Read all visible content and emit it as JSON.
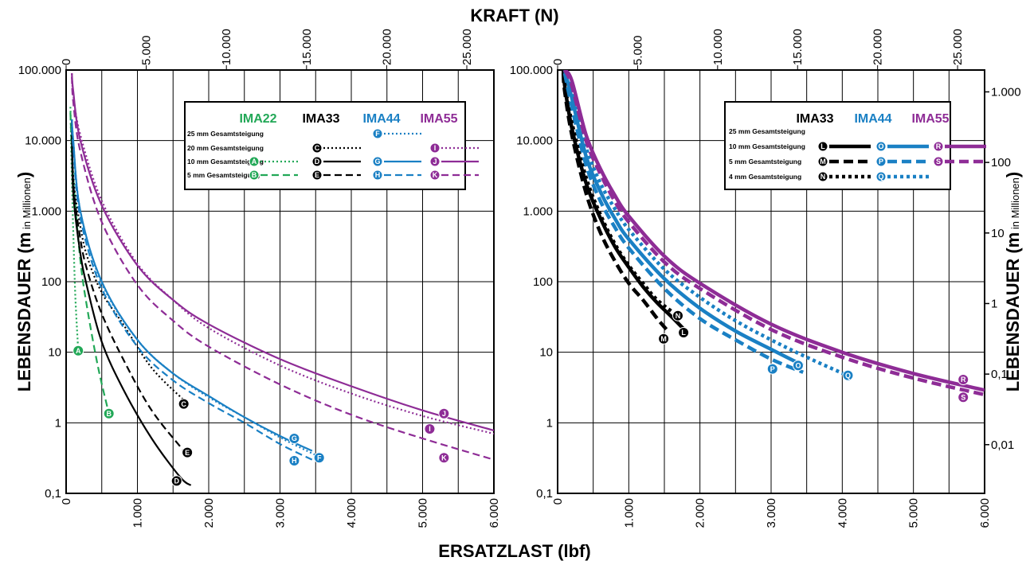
{
  "top_title": "KRAFT (N)",
  "bottom_title": "ERSATZLAST (lbf)",
  "colors": {
    "IMA22": "#22a857",
    "IMA33": "#000000",
    "IMA44": "#1a80c4",
    "IMA55": "#8e2c96"
  },
  "chart_data": [
    {
      "type": "line",
      "id": "left",
      "ylabel_main": "LEBENSDAUER (m",
      "ylabel_sub": " in Millionen",
      "ylabel_close": ")",
      "xlim": [
        0,
        6000
      ],
      "x2lim": [
        0,
        26689
      ],
      "ylim": [
        0.1,
        100000
      ],
      "yscale": "log",
      "x_ticks": [
        "0",
        "1.000",
        "2.000",
        "3.000",
        "4.000",
        "5.000",
        "6.000"
      ],
      "x2_ticks": [
        {
          "v": 0,
          "t": "0"
        },
        {
          "v": 5000,
          "t": "5.000"
        },
        {
          "v": 10000,
          "t": "10.000"
        },
        {
          "v": 15000,
          "t": "15.000"
        },
        {
          "v": 20000,
          "t": "20.000"
        },
        {
          "v": 25000,
          "t": "25.000"
        }
      ],
      "y_ticks": [
        {
          "v": 100000,
          "t": "100.000"
        },
        {
          "v": 10000,
          "t": "10.000"
        },
        {
          "v": 1000,
          "t": "1.000"
        },
        {
          "v": 100,
          "t": "100"
        },
        {
          "v": 10,
          "t": "10"
        },
        {
          "v": 1,
          "t": "1"
        },
        {
          "v": 0.1,
          "t": "0,1"
        }
      ],
      "legend": {
        "headers": [
          "IMA22",
          "IMA33",
          "IMA44",
          "IMA55"
        ],
        "rows": [
          "25 mm Gesamtsteigung",
          "20 mm Gesamtsteigung",
          "10 mm Gesamtsteigung",
          "5 mm Gesamtsteigung"
        ],
        "entries": [
          {
            "col": "IMA44",
            "row": 0,
            "marker": "F",
            "style": "dotted"
          },
          {
            "col": "IMA33",
            "row": 1,
            "marker": "C",
            "style": "dotted"
          },
          {
            "col": "IMA55",
            "row": 1,
            "marker": "I",
            "style": "dotted"
          },
          {
            "col": "IMA22",
            "row": 2,
            "marker": "A",
            "style": "dotted"
          },
          {
            "col": "IMA33",
            "row": 2,
            "marker": "D",
            "style": "solid"
          },
          {
            "col": "IMA44",
            "row": 2,
            "marker": "G",
            "style": "solid"
          },
          {
            "col": "IMA55",
            "row": 2,
            "marker": "J",
            "style": "solid"
          },
          {
            "col": "IMA22",
            "row": 3,
            "marker": "B",
            "style": "dashed"
          },
          {
            "col": "IMA33",
            "row": 3,
            "marker": "E",
            "style": "dashed"
          },
          {
            "col": "IMA44",
            "row": 3,
            "marker": "H",
            "style": "dashed"
          },
          {
            "col": "IMA55",
            "row": 3,
            "marker": "K",
            "style": "dashed"
          }
        ]
      },
      "series": [
        {
          "name": "A",
          "model": "IMA22",
          "style": "dotted",
          "end_x": 170,
          "end_y": 10.5,
          "x": [
            60,
            80,
            100,
            130,
            170
          ],
          "y": [
            30000,
            3000,
            500,
            60,
            10.5
          ]
        },
        {
          "name": "B",
          "model": "IMA22",
          "style": "dashed",
          "end_x": 600,
          "end_y": 1.35,
          "x": [
            60,
            100,
            200,
            300,
            450,
            600
          ],
          "y": [
            25000,
            3000,
            200,
            40,
            6,
            1.35
          ]
        },
        {
          "name": "C",
          "model": "IMA33",
          "style": "dotted",
          "end_x": 1650,
          "end_y": 2.1,
          "x": [
            80,
            100,
            200,
            300,
            500,
            800,
            1200,
            1650
          ],
          "y": [
            20000,
            3000,
            600,
            220,
            70,
            25,
            6,
            2.1
          ]
        },
        {
          "name": "D",
          "model": "IMA33",
          "style": "solid",
          "end_x": 1750,
          "end_y": 0.13,
          "x": [
            80,
            100,
            200,
            300,
            500,
            800,
            1200,
            1600,
            1750
          ],
          "y": [
            15000,
            1800,
            250,
            80,
            14,
            3,
            0.6,
            0.17,
            0.13
          ]
        },
        {
          "name": "E",
          "model": "IMA33",
          "style": "dashed",
          "end_x": 1700,
          "end_y": 0.35,
          "x": [
            80,
            100,
            200,
            300,
            500,
            800,
            1200,
            1700
          ],
          "y": [
            20000,
            2500,
            400,
            140,
            35,
            8,
            1.5,
            0.35
          ]
        },
        {
          "name": "F",
          "model": "IMA44",
          "style": "dotted",
          "end_x": 3550,
          "end_y": 0.33,
          "x": [
            80,
            100,
            200,
            500,
            1000,
            1500,
            2000,
            2500,
            3000,
            3550
          ],
          "y": [
            20000,
            10000,
            1000,
            95,
            15,
            5,
            2.3,
            1.2,
            0.62,
            0.33
          ]
        },
        {
          "name": "G",
          "model": "IMA44",
          "style": "solid",
          "end_x": 3450,
          "end_y": 0.4,
          "x": [
            80,
            100,
            200,
            500,
            1000,
            1500,
            2000,
            2500,
            3000,
            3450
          ],
          "y": [
            20000,
            10000,
            1000,
            100,
            15,
            5,
            2.4,
            1.2,
            0.65,
            0.4
          ]
        },
        {
          "name": "H",
          "model": "IMA44",
          "style": "dashed",
          "end_x": 3450,
          "end_y": 0.3,
          "x": [
            80,
            100,
            200,
            500,
            1000,
            1500,
            2000,
            2500,
            3000,
            3450
          ],
          "y": [
            15000,
            8000,
            800,
            80,
            12,
            4,
            1.9,
            1,
            0.5,
            0.3
          ]
        },
        {
          "name": "I",
          "model": "IMA55",
          "style": "dotted",
          "end_x": 6000,
          "end_y": 0.7,
          "x": [
            80,
            100,
            200,
            500,
            1000,
            1500,
            2000,
            3000,
            4000,
            5000,
            6000
          ],
          "y": [
            90000,
            45000,
            12000,
            1400,
            180,
            55,
            22,
            6.5,
            2.6,
            1.25,
            0.7
          ]
        },
        {
          "name": "J",
          "model": "IMA55",
          "style": "solid",
          "end_x": 6000,
          "end_y": 0.78,
          "x": [
            80,
            100,
            200,
            500,
            1000,
            1500,
            2000,
            3000,
            4000,
            5000,
            6000
          ],
          "y": [
            90000,
            50000,
            10000,
            1200,
            170,
            55,
            25,
            8,
            3.3,
            1.5,
            0.78
          ]
        },
        {
          "name": "K",
          "model": "IMA55",
          "style": "dashed",
          "end_x": 6000,
          "end_y": 0.3,
          "x": [
            80,
            100,
            200,
            500,
            1000,
            1500,
            2000,
            3000,
            4000,
            5000,
            6000
          ],
          "y": [
            80000,
            35000,
            7000,
            700,
            90,
            28,
            12,
            3.5,
            1.3,
            0.6,
            0.3
          ]
        }
      ],
      "markers": [
        {
          "t": "A",
          "x": 170,
          "y": 10.5,
          "model": "IMA22"
        },
        {
          "t": "B",
          "x": 600,
          "y": 1.35,
          "model": "IMA22"
        },
        {
          "t": "C",
          "x": 1650,
          "y": 1.85,
          "model": "IMA33"
        },
        {
          "t": "D",
          "x": 1550,
          "y": 0.15,
          "model": "IMA33"
        },
        {
          "t": "E",
          "x": 1700,
          "y": 0.38,
          "model": "IMA33"
        },
        {
          "t": "F",
          "x": 3550,
          "y": 0.32,
          "model": "IMA44"
        },
        {
          "t": "G",
          "x": 3200,
          "y": 0.6,
          "model": "IMA44"
        },
        {
          "t": "H",
          "x": 3200,
          "y": 0.29,
          "model": "IMA44"
        },
        {
          "t": "I",
          "x": 5100,
          "y": 0.82,
          "model": "IMA55"
        },
        {
          "t": "J",
          "x": 5300,
          "y": 1.35,
          "model": "IMA55"
        },
        {
          "t": "K",
          "x": 5300,
          "y": 0.32,
          "model": "IMA55"
        }
      ]
    },
    {
      "type": "line",
      "id": "right",
      "ylabel_main": "LEBENSDAUER (m",
      "ylabel_sub": " in Millionen",
      "ylabel_close": ")",
      "xlim": [
        0,
        6000
      ],
      "x2lim": [
        0,
        26689
      ],
      "ylim": [
        0.1,
        100000
      ],
      "yscale": "log",
      "x_ticks": [
        "0",
        "1.000",
        "2.000",
        "3.000",
        "4.000",
        "5.000",
        "6.000"
      ],
      "x2_ticks": [
        {
          "v": 0,
          "t": "0"
        },
        {
          "v": 5000,
          "t": "5.000"
        },
        {
          "v": 10000,
          "t": "10.000"
        },
        {
          "v": 15000,
          "t": "15.000"
        },
        {
          "v": 20000,
          "t": "20.000"
        },
        {
          "v": 25000,
          "t": "25.000"
        }
      ],
      "y_ticks": [
        {
          "v": 100000,
          "t": "100.000"
        },
        {
          "v": 10000,
          "t": "10.000"
        },
        {
          "v": 1000,
          "t": "1.000"
        },
        {
          "v": 100,
          "t": "100"
        },
        {
          "v": 10,
          "t": "10"
        },
        {
          "v": 1,
          "t": "1"
        },
        {
          "v": 0.1,
          "t": "0,1"
        }
      ],
      "y2_ticks": [
        {
          "v": 1000,
          "t": "1.000"
        },
        {
          "v": 100,
          "t": "100"
        },
        {
          "v": 10,
          "t": "10"
        },
        {
          "v": 1,
          "t": "1"
        },
        {
          "v": 0.1,
          "t": "0,1"
        },
        {
          "v": 0.01,
          "t": "0,01"
        }
      ],
      "y2lim": [
        0.00204,
        2040
      ],
      "legend": {
        "headers": [
          "IMA33",
          "IMA44",
          "IMA55"
        ],
        "rows": [
          "25 mm Gesamtsteigung",
          "10 mm Gesamtsteigung",
          "5 mm Gesamtsteigung",
          "4 mm Gesamtsteigung"
        ],
        "entries": [
          {
            "col": "IMA33",
            "row": 1,
            "marker": "L",
            "style": "solid"
          },
          {
            "col": "IMA44",
            "row": 1,
            "marker": "O",
            "style": "solid"
          },
          {
            "col": "IMA55",
            "row": 1,
            "marker": "R",
            "style": "solid"
          },
          {
            "col": "IMA33",
            "row": 2,
            "marker": "M",
            "style": "dashed"
          },
          {
            "col": "IMA44",
            "row": 2,
            "marker": "P",
            "style": "dashed"
          },
          {
            "col": "IMA55",
            "row": 2,
            "marker": "S",
            "style": "dashed"
          },
          {
            "col": "IMA33",
            "row": 3,
            "marker": "N",
            "style": "dotted"
          },
          {
            "col": "IMA44",
            "row": 3,
            "marker": "Q",
            "style": "dotted"
          }
        ]
      },
      "series": [
        {
          "name": "L",
          "model": "IMA33",
          "style": "solid",
          "x": [
            80,
            100,
            200,
            400,
            600,
            800,
            1000,
            1200,
            1400,
            1600,
            1800
          ],
          "y": [
            100000,
            60000,
            15000,
            2500,
            800,
            320,
            160,
            85,
            50,
            32,
            20
          ]
        },
        {
          "name": "M",
          "model": "IMA33",
          "style": "dashed",
          "x": [
            80,
            100,
            200,
            400,
            600,
            800,
            1000,
            1200,
            1400,
            1550
          ],
          "y": [
            90000,
            50000,
            12000,
            1800,
            500,
            200,
            95,
            55,
            30,
            20
          ]
        },
        {
          "name": "N",
          "model": "IMA33",
          "style": "dotted",
          "x": [
            80,
            100,
            200,
            400,
            600,
            800,
            1000,
            1200,
            1400,
            1700
          ],
          "y": [
            100000,
            65000,
            18000,
            3000,
            900,
            350,
            170,
            95,
            55,
            32
          ]
        },
        {
          "name": "O",
          "model": "IMA44",
          "style": "solid",
          "x": [
            100,
            200,
            400,
            600,
            800,
            1000,
            1500,
            2000,
            2500,
            3000,
            3450
          ],
          "y": [
            100000,
            40000,
            6000,
            1900,
            800,
            400,
            110,
            42,
            20,
            11,
            6.5
          ]
        },
        {
          "name": "P",
          "model": "IMA44",
          "style": "dashed",
          "x": [
            100,
            200,
            400,
            600,
            800,
            1000,
            1500,
            2000,
            2500,
            3000,
            3450
          ],
          "y": [
            90000,
            30000,
            4500,
            1400,
            600,
            300,
            80,
            30,
            15,
            8,
            5.2
          ]
        },
        {
          "name": "Q",
          "model": "IMA44",
          "style": "dotted",
          "x": [
            100,
            200,
            400,
            600,
            800,
            1000,
            1500,
            2000,
            2500,
            3000,
            3500,
            4050
          ],
          "y": [
            100000,
            50000,
            8000,
            2500,
            1100,
            550,
            150,
            60,
            28,
            15,
            8.5,
            4.8
          ]
        },
        {
          "name": "R",
          "model": "IMA55",
          "style": "solid",
          "x": [
            100,
            200,
            400,
            600,
            800,
            1000,
            1500,
            2000,
            3000,
            4000,
            5000,
            6000
          ],
          "y": [
            100000,
            70000,
            12000,
            4000,
            1700,
            850,
            230,
            95,
            25,
            10,
            5,
            2.9
          ]
        },
        {
          "name": "S",
          "model": "IMA55",
          "style": "dashed",
          "x": [
            100,
            200,
            400,
            600,
            800,
            1000,
            1500,
            2000,
            3000,
            4000,
            5000,
            6000
          ],
          "y": [
            100000,
            60000,
            10000,
            3400,
            1400,
            700,
            190,
            80,
            21,
            8.5,
            4.3,
            2.5
          ]
        }
      ],
      "markers": [
        {
          "t": "L",
          "x": 1770,
          "y": 19,
          "model": "IMA33"
        },
        {
          "t": "M",
          "x": 1490,
          "y": 15.5,
          "model": "IMA33"
        },
        {
          "t": "N",
          "x": 1690,
          "y": 33,
          "model": "IMA33"
        },
        {
          "t": "O",
          "x": 3380,
          "y": 6.5,
          "model": "IMA44"
        },
        {
          "t": "P",
          "x": 3020,
          "y": 5.8,
          "model": "IMA44"
        },
        {
          "t": "Q",
          "x": 4080,
          "y": 4.7,
          "model": "IMA44"
        },
        {
          "t": "R",
          "x": 5700,
          "y": 4.1,
          "model": "IMA55"
        },
        {
          "t": "S",
          "x": 5700,
          "y": 2.3,
          "model": "IMA55"
        }
      ]
    }
  ]
}
